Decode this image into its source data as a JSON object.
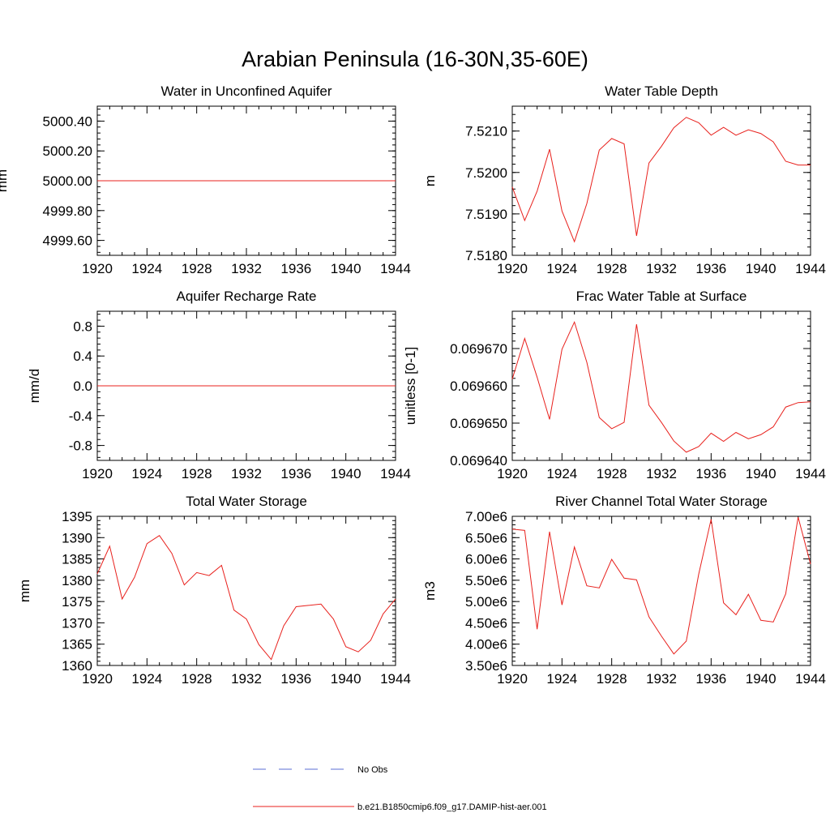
{
  "figure": {
    "title": "Arabian Peninsula (16-30N,35-60E)",
    "series_color": "#e8201c",
    "obs_color": "#5b6cd4"
  },
  "legend": {
    "items": [
      {
        "label": "No Obs",
        "style": "dashed"
      },
      {
        "label": "b.e21.B1850cmip6.f09_g17.DAMIP-hist-aer.001",
        "style": "solid"
      }
    ]
  },
  "chart_data": [
    {
      "type": "line",
      "title": "Water in Unconfined Aquifer",
      "ylabel": "mm",
      "xlim": [
        1920,
        1944
      ],
      "ylim": [
        4999.5,
        5000.5
      ],
      "xticks": [
        "1920",
        "1924",
        "1928",
        "1932",
        "1936",
        "1940",
        "1944"
      ],
      "yticks": [
        {
          "value": 5000.4,
          "label": "5000.40"
        },
        {
          "value": 5000.2,
          "label": "5000.20"
        },
        {
          "value": 5000.0,
          "label": "5000.00"
        },
        {
          "value": 4999.8,
          "label": "4999.80"
        },
        {
          "value": 4999.6,
          "label": "4999.60"
        }
      ],
      "x": [
        1920,
        1944
      ],
      "series": [
        {
          "values": [
            5000.0,
            5000.0
          ]
        }
      ]
    },
    {
      "type": "line",
      "title": "Water Table Depth",
      "ylabel": "m",
      "xlim": [
        1920,
        1944
      ],
      "ylim": [
        7.518,
        7.5216
      ],
      "xticks": [
        "1920",
        "1924",
        "1928",
        "1932",
        "1936",
        "1940",
        "1944"
      ],
      "yticks": [
        {
          "value": 7.521,
          "label": "7.5210"
        },
        {
          "value": 7.52,
          "label": "7.5200"
        },
        {
          "value": 7.519,
          "label": "7.5190"
        },
        {
          "value": 7.518,
          "label": "7.5180"
        }
      ],
      "x": [
        1920,
        1921,
        1922,
        1923,
        1924,
        1925,
        1926,
        1927,
        1928,
        1929,
        1930,
        1931,
        1932,
        1933,
        1934,
        1935,
        1936,
        1937,
        1938,
        1939,
        1940,
        1941,
        1942,
        1943,
        1944
      ],
      "series": [
        {
          "values": [
            7.51965,
            7.51884,
            7.51955,
            7.52056,
            7.51907,
            7.51833,
            7.51925,
            7.52054,
            7.52082,
            7.52069,
            7.51847,
            7.52023,
            7.52063,
            7.52108,
            7.52133,
            7.5212,
            7.5209,
            7.52109,
            7.5209,
            7.52103,
            7.52094,
            7.52074,
            7.52027,
            7.52018,
            7.52018
          ]
        }
      ]
    },
    {
      "type": "line",
      "title": "Aquifer Recharge Rate",
      "ylabel": "mm/d",
      "xlim": [
        1920,
        1944
      ],
      "ylim": [
        -1.0,
        1.0
      ],
      "xticks": [
        "1920",
        "1924",
        "1928",
        "1932",
        "1936",
        "1940",
        "1944"
      ],
      "yticks": [
        {
          "value": 0.8,
          "label": "0.8"
        },
        {
          "value": 0.4,
          "label": "0.4"
        },
        {
          "value": 0.0,
          "label": "0.0"
        },
        {
          "value": -0.4,
          "label": "-0.4"
        },
        {
          "value": -0.8,
          "label": "-0.8"
        }
      ],
      "x": [
        1920,
        1944
      ],
      "series": [
        {
          "values": [
            0.0,
            0.0
          ]
        }
      ]
    },
    {
      "type": "line",
      "title": "Frac Water Table at Surface",
      "ylabel": "unitless [0-1]",
      "xlim": [
        1920,
        1944
      ],
      "ylim": [
        0.06964,
        0.06968
      ],
      "xticks": [
        "1920",
        "1924",
        "1928",
        "1932",
        "1936",
        "1940",
        "1944"
      ],
      "yticks": [
        {
          "value": 0.06967,
          "label": "0.069670"
        },
        {
          "value": 0.06966,
          "label": "0.069660"
        },
        {
          "value": 0.06965,
          "label": "0.069650"
        },
        {
          "value": 0.06964,
          "label": "0.069640"
        }
      ],
      "x": [
        1920,
        1921,
        1922,
        1923,
        1924,
        1925,
        1926,
        1927,
        1928,
        1929,
        1930,
        1931,
        1932,
        1933,
        1934,
        1935,
        1936,
        1937,
        1938,
        1939,
        1940,
        1941,
        1942,
        1943,
        1944
      ],
      "series": [
        {
          "values": [
            0.0696618,
            0.0696727,
            0.0696623,
            0.069651,
            0.0696698,
            0.0696771,
            0.0696663,
            0.0696515,
            0.0696485,
            0.0696502,
            0.0696765,
            0.0696548,
            0.0696502,
            0.0696452,
            0.0696422,
            0.0696437,
            0.0696473,
            0.0696451,
            0.0696475,
            0.0696458,
            0.0696469,
            0.069649,
            0.0696543,
            0.0696555,
            0.0696557
          ]
        }
      ]
    },
    {
      "type": "line",
      "title": "Total Water Storage",
      "ylabel": "mm",
      "xlim": [
        1920,
        1944
      ],
      "ylim": [
        1360,
        1395
      ],
      "xticks": [
        "1920",
        "1924",
        "1928",
        "1932",
        "1936",
        "1940",
        "1944"
      ],
      "yticks": [
        {
          "value": 1395,
          "label": "1395"
        },
        {
          "value": 1390,
          "label": "1390"
        },
        {
          "value": 1385,
          "label": "1385"
        },
        {
          "value": 1380,
          "label": "1380"
        },
        {
          "value": 1375,
          "label": "1375"
        },
        {
          "value": 1370,
          "label": "1370"
        },
        {
          "value": 1365,
          "label": "1365"
        },
        {
          "value": 1360,
          "label": "1360"
        }
      ],
      "x": [
        1920,
        1921,
        1922,
        1923,
        1924,
        1925,
        1926,
        1927,
        1928,
        1929,
        1930,
        1931,
        1932,
        1933,
        1934,
        1935,
        1936,
        1937,
        1938,
        1939,
        1940,
        1941,
        1942,
        1943,
        1944
      ],
      "series": [
        {
          "values": [
            1381.5,
            1388.0,
            1375.6,
            1380.7,
            1388.6,
            1390.5,
            1386.3,
            1378.9,
            1381.8,
            1381.1,
            1383.5,
            1373.0,
            1370.9,
            1364.9,
            1361.4,
            1369.3,
            1373.8,
            1374.1,
            1374.4,
            1370.9,
            1364.4,
            1363.2,
            1365.9,
            1372.1,
            1375.6
          ]
        }
      ]
    },
    {
      "type": "line",
      "title": "River Channel Total Water Storage",
      "ylabel": "m3",
      "xlim": [
        1920,
        1944
      ],
      "ylim": [
        3500000,
        7000000
      ],
      "xticks": [
        "1920",
        "1924",
        "1928",
        "1932",
        "1936",
        "1940",
        "1944"
      ],
      "yticks": [
        {
          "value": 7000000,
          "label": "7.00e6"
        },
        {
          "value": 6500000,
          "label": "6.50e6"
        },
        {
          "value": 6000000,
          "label": "6.00e6"
        },
        {
          "value": 5500000,
          "label": "5.50e6"
        },
        {
          "value": 5000000,
          "label": "5.00e6"
        },
        {
          "value": 4500000,
          "label": "4.50e6"
        },
        {
          "value": 4000000,
          "label": "4.00e6"
        },
        {
          "value": 3500000,
          "label": "3.50e6"
        }
      ],
      "x": [
        1920,
        1921,
        1922,
        1923,
        1924,
        1925,
        1926,
        1927,
        1928,
        1929,
        1930,
        1931,
        1932,
        1933,
        1934,
        1935,
        1936,
        1937,
        1938,
        1939,
        1940,
        1941,
        1942,
        1943,
        1944
      ],
      "series": [
        {
          "values": [
            6700000,
            6670000,
            4350000,
            6640000,
            4920000,
            6280000,
            5370000,
            5320000,
            5990000,
            5550000,
            5510000,
            4640000,
            4190000,
            3770000,
            4070000,
            5640000,
            6930000,
            4970000,
            4690000,
            5170000,
            4560000,
            4520000,
            5180000,
            6980000,
            5880000
          ]
        }
      ]
    }
  ]
}
